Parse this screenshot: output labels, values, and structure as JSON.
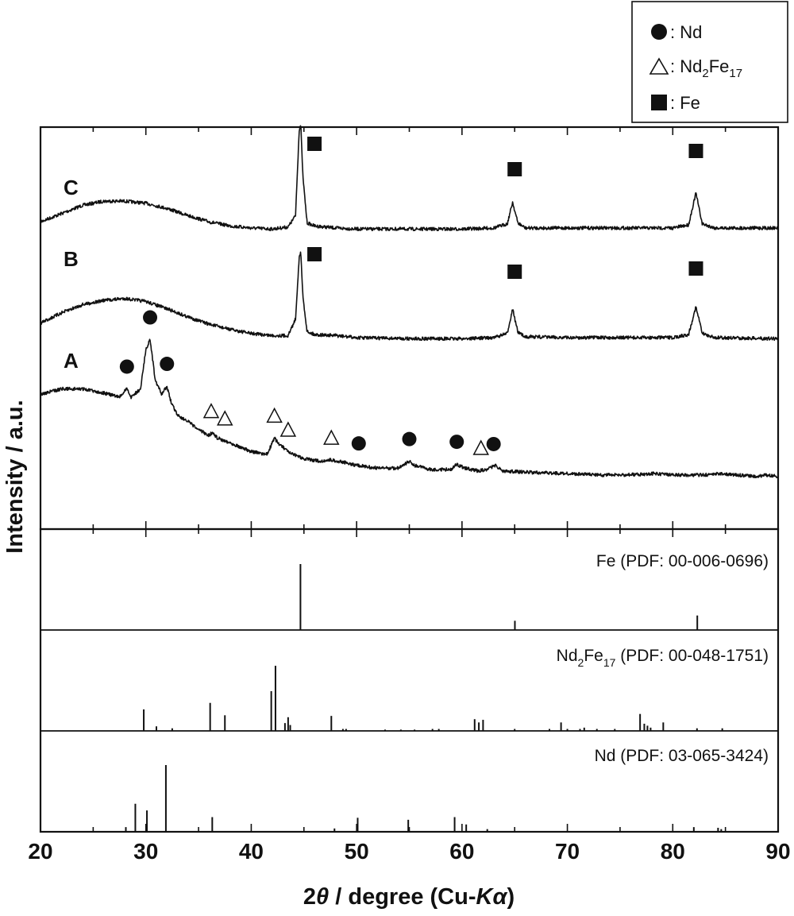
{
  "chart_data": {
    "type": "line",
    "xlabel": {
      "prefix": "2",
      "theta": "θ",
      "middle": " / degree (Cu-",
      "italic": "Kα",
      "suffix": ")"
    },
    "ylabel": "Intensity / a.u.",
    "xlim": [
      20,
      90
    ],
    "xticks": [
      "20",
      "30",
      "40",
      "50",
      "60",
      "70",
      "80",
      "90"
    ],
    "grid": false,
    "legend": {
      "placement": "top-right",
      "entries": [
        {
          "marker": "circle",
          "text": ": Nd"
        },
        {
          "marker": "triangle",
          "text_parts": [
            ": Nd",
            "2",
            "Fe",
            "17"
          ]
        },
        {
          "marker": "square",
          "text": ": Fe"
        }
      ]
    },
    "series": [
      {
        "name": "C",
        "points": [
          [
            20,
            0.06
          ],
          [
            22,
            0.14
          ],
          [
            24,
            0.22
          ],
          [
            26,
            0.26
          ],
          [
            28,
            0.26
          ],
          [
            30,
            0.24
          ],
          [
            32,
            0.19
          ],
          [
            34,
            0.12
          ],
          [
            36,
            0.06
          ],
          [
            38,
            0.02
          ],
          [
            40,
            0.0
          ],
          [
            42,
            -0.01
          ],
          [
            43.5,
            0.01
          ],
          [
            44.2,
            0.12
          ],
          [
            44.55,
            0.95
          ],
          [
            44.7,
            1.0
          ],
          [
            44.9,
            0.5
          ],
          [
            45.3,
            0.05
          ],
          [
            46,
            0.02
          ],
          [
            48,
            0.0
          ],
          [
            50,
            -0.01
          ],
          [
            55,
            -0.01
          ],
          [
            60,
            -0.01
          ],
          [
            63,
            0.0
          ],
          [
            64.3,
            0.04
          ],
          [
            64.8,
            0.25
          ],
          [
            65.3,
            0.05
          ],
          [
            66,
            0.0
          ],
          [
            70,
            0.0
          ],
          [
            75,
            0.0
          ],
          [
            80,
            0.0
          ],
          [
            81.5,
            0.03
          ],
          [
            82.2,
            0.34
          ],
          [
            82.8,
            0.04
          ],
          [
            84,
            0.0
          ],
          [
            90,
            0.0
          ]
        ],
        "markers": [
          {
            "x": 46.0,
            "type": "square"
          },
          {
            "x": 65.0,
            "type": "square"
          },
          {
            "x": 82.2,
            "type": "square"
          }
        ]
      },
      {
        "name": "B",
        "points": [
          [
            20,
            0.14
          ],
          [
            22,
            0.24
          ],
          [
            24,
            0.32
          ],
          [
            26,
            0.36
          ],
          [
            28,
            0.38
          ],
          [
            30,
            0.35
          ],
          [
            32,
            0.28
          ],
          [
            34,
            0.2
          ],
          [
            36,
            0.13
          ],
          [
            38,
            0.08
          ],
          [
            40,
            0.04
          ],
          [
            42,
            0.02
          ],
          [
            43.5,
            0.02
          ],
          [
            44.2,
            0.18
          ],
          [
            44.55,
            0.78
          ],
          [
            44.7,
            0.82
          ],
          [
            44.9,
            0.4
          ],
          [
            45.3,
            0.06
          ],
          [
            46,
            0.03
          ],
          [
            48,
            0.02
          ],
          [
            50,
            0.0
          ],
          [
            55,
            -0.01
          ],
          [
            60,
            -0.01
          ],
          [
            63,
            0.0
          ],
          [
            64.3,
            0.04
          ],
          [
            64.8,
            0.28
          ],
          [
            65.3,
            0.05
          ],
          [
            66,
            0.01
          ],
          [
            70,
            0.0
          ],
          [
            75,
            0.0
          ],
          [
            80,
            0.0
          ],
          [
            81.5,
            0.03
          ],
          [
            82.2,
            0.3
          ],
          [
            82.8,
            0.04
          ],
          [
            84,
            0.0
          ],
          [
            90,
            -0.01
          ]
        ],
        "markers": [
          {
            "x": 46.0,
            "type": "square"
          },
          {
            "x": 65.0,
            "type": "square"
          },
          {
            "x": 82.2,
            "type": "square"
          }
        ]
      },
      {
        "name": "A",
        "points": [
          [
            20,
            0.62
          ],
          [
            22,
            0.66
          ],
          [
            24,
            0.66
          ],
          [
            26,
            0.63
          ],
          [
            27.5,
            0.6
          ],
          [
            28.2,
            0.66
          ],
          [
            28.6,
            0.6
          ],
          [
            29.5,
            0.66
          ],
          [
            30.0,
            0.95
          ],
          [
            30.4,
            1.02
          ],
          [
            30.9,
            0.72
          ],
          [
            31.5,
            0.62
          ],
          [
            32.0,
            0.68
          ],
          [
            32.4,
            0.56
          ],
          [
            33,
            0.47
          ],
          [
            34,
            0.42
          ],
          [
            35,
            0.36
          ],
          [
            36,
            0.32
          ],
          [
            36.3,
            0.34
          ],
          [
            36.8,
            0.3
          ],
          [
            37.5,
            0.28
          ],
          [
            38.5,
            0.25
          ],
          [
            40,
            0.2
          ],
          [
            41.5,
            0.18
          ],
          [
            42.2,
            0.3
          ],
          [
            42.6,
            0.26
          ],
          [
            43.2,
            0.22
          ],
          [
            43.6,
            0.19
          ],
          [
            45,
            0.15
          ],
          [
            46.5,
            0.13
          ],
          [
            47.5,
            0.14
          ],
          [
            49,
            0.12
          ],
          [
            50,
            0.1
          ],
          [
            52,
            0.08
          ],
          [
            54,
            0.08
          ],
          [
            55,
            0.13
          ],
          [
            55.5,
            0.1
          ],
          [
            57,
            0.07
          ],
          [
            59,
            0.07
          ],
          [
            59.5,
            0.11
          ],
          [
            60.2,
            0.08
          ],
          [
            61.5,
            0.06
          ],
          [
            62.3,
            0.07
          ],
          [
            63.2,
            0.1
          ],
          [
            63.8,
            0.06
          ],
          [
            66,
            0.05
          ],
          [
            70,
            0.04
          ],
          [
            73,
            0.03
          ],
          [
            75,
            0.03
          ],
          [
            77,
            0.035
          ],
          [
            78,
            0.04
          ],
          [
            80,
            0.03
          ],
          [
            83,
            0.03
          ],
          [
            84.5,
            0.04
          ],
          [
            86,
            0.03
          ],
          [
            88,
            0.02
          ],
          [
            89,
            0.03
          ],
          [
            90,
            0.02
          ]
        ],
        "markers": [
          {
            "x": 28.2,
            "type": "circle"
          },
          {
            "x": 30.4,
            "type": "circle"
          },
          {
            "x": 32.0,
            "type": "circle"
          },
          {
            "x": 36.2,
            "type": "triangle"
          },
          {
            "x": 37.5,
            "type": "triangle"
          },
          {
            "x": 42.2,
            "type": "triangle"
          },
          {
            "x": 43.5,
            "type": "triangle"
          },
          {
            "x": 47.6,
            "type": "triangle"
          },
          {
            "x": 50.2,
            "type": "circle"
          },
          {
            "x": 55.0,
            "type": "circle"
          },
          {
            "x": 59.5,
            "type": "circle"
          },
          {
            "x": 61.8,
            "type": "triangle"
          },
          {
            "x": 63.0,
            "type": "circle"
          }
        ]
      }
    ],
    "reference_patterns": [
      {
        "label": "Fe (PDF: 00-006-0696)",
        "peaks": [
          [
            44.67,
            100
          ],
          [
            65.02,
            14
          ],
          [
            82.33,
            22
          ]
        ]
      },
      {
        "label_parts": [
          "Nd",
          "2",
          "Fe",
          "17",
          " (PDF: 00-048-1751)"
        ],
        "peaks": [
          [
            29.8,
            33
          ],
          [
            31.0,
            7
          ],
          [
            32.5,
            4
          ],
          [
            36.1,
            43
          ],
          [
            37.5,
            24
          ],
          [
            41.9,
            61
          ],
          [
            42.3,
            100
          ],
          [
            43.2,
            12
          ],
          [
            43.5,
            21
          ],
          [
            43.7,
            9
          ],
          [
            47.6,
            23
          ],
          [
            48.7,
            3
          ],
          [
            49.0,
            3
          ],
          [
            52.7,
            2
          ],
          [
            54.2,
            2
          ],
          [
            55.5,
            2
          ],
          [
            57.2,
            3
          ],
          [
            57.8,
            3
          ],
          [
            61.2,
            18
          ],
          [
            61.6,
            13
          ],
          [
            62.0,
            17
          ],
          [
            65.0,
            3
          ],
          [
            68.3,
            3
          ],
          [
            69.4,
            13
          ],
          [
            70.0,
            3
          ],
          [
            71.2,
            3
          ],
          [
            71.6,
            5
          ],
          [
            72.8,
            3
          ],
          [
            74.5,
            3
          ],
          [
            76.9,
            26
          ],
          [
            77.3,
            11
          ],
          [
            77.6,
            8
          ],
          [
            77.9,
            5
          ],
          [
            79.1,
            13
          ],
          [
            82.3,
            4
          ],
          [
            84.7,
            4
          ]
        ]
      },
      {
        "label": "Nd (PDF: 03-065-3424)",
        "peaks": [
          [
            28.1,
            7
          ],
          [
            29.0,
            42
          ],
          [
            30.1,
            32
          ],
          [
            31.9,
            100
          ],
          [
            36.3,
            22
          ],
          [
            47.9,
            5
          ],
          [
            50.1,
            21
          ],
          [
            54.9,
            18
          ],
          [
            59.3,
            22
          ],
          [
            60.4,
            11
          ],
          [
            62.4,
            4
          ],
          [
            82.0,
            7
          ],
          [
            84.3,
            6
          ],
          [
            84.6,
            4
          ]
        ]
      }
    ]
  }
}
